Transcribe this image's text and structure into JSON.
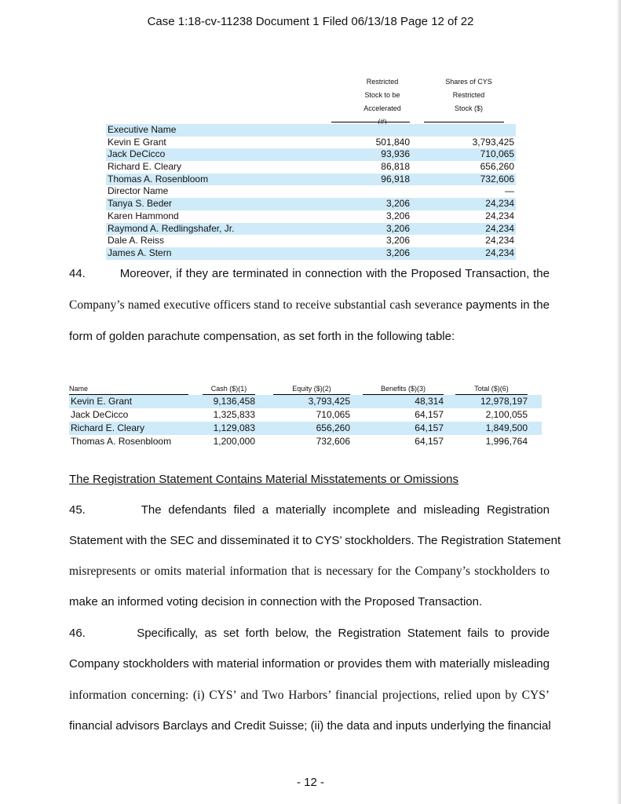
{
  "header": "Case 1:18-cv-11238   Document 1   Filed 06/13/18   Page 12 of 22",
  "table1": {
    "col_headers": [
      [
        "Restricted",
        "Stock to be",
        "Accelerated",
        "(#)"
      ],
      [
        "Shares of CYS",
        "Restricted",
        "Stock ($)"
      ]
    ],
    "rows": [
      {
        "name": "Executive Name",
        "shares": "",
        "value": "",
        "shade": true
      },
      {
        "name": "Kevin E Grant",
        "shares": "501,840",
        "value": "3,793,425",
        "shade": false
      },
      {
        "name": "Jack DeCicco",
        "shares": "93,936",
        "value": "710,065",
        "shade": true
      },
      {
        "name": "Richard E. Cleary",
        "shares": "86,818",
        "value": "656,260",
        "shade": false
      },
      {
        "name": "Thomas A. Rosenbloom",
        "shares": "96,918",
        "value": "732,606",
        "shade": true
      },
      {
        "name": "Director Name",
        "shares": "",
        "value": "—",
        "shade": false
      },
      {
        "name": "Tanya S. Beder",
        "shares": "3,206",
        "value": "24,234",
        "shade": true
      },
      {
        "name": "Karen Hammond",
        "shares": "3,206",
        "value": "24,234",
        "shade": false
      },
      {
        "name": "Raymond A. Redlingshafer, Jr.",
        "shares": "3,206",
        "value": "24,234",
        "shade": true
      },
      {
        "name": "Dale A. Reiss",
        "shares": "3,206",
        "value": "24,234",
        "shade": false
      },
      {
        "name": "James A. Stern",
        "shares": "3,206",
        "value": "24,234",
        "shade": true
      }
    ]
  },
  "para44": [
    [
      "44.         Moreover, if they are terminated in connection with the Proposed Transaction, the"
    ],
    [
      "Company’s named executive officers stand to receive substantial cash severance ",
      "payments in the"
    ],
    [
      "form of golden parachute compensation, as set forth in the following table:"
    ]
  ],
  "table2": {
    "headers": [
      "Name",
      "Cash ($)(1)",
      "Equity ($)(2)",
      "Benefits ($)(3)",
      "Total ($)(6)"
    ],
    "rows": [
      {
        "cells": [
          "Kevin E. Grant",
          "9,136,458",
          "3,793,425",
          "48,314",
          "12,978,197"
        ],
        "shade": true
      },
      {
        "cells": [
          "Jack DeCicco",
          "1,325,833",
          "710,065",
          "64,157",
          "2,100,055"
        ],
        "shade": false
      },
      {
        "cells": [
          "Richard E. Cleary",
          "1,129,083",
          "656,260",
          "64,157",
          "1,849,500"
        ],
        "shade": true
      },
      {
        "cells": [
          "Thomas A. Rosenbloom",
          "1,200,000",
          "732,606",
          "64,157",
          "1,996,764"
        ],
        "shade": false
      }
    ]
  },
  "heading": "The Registration Statement Contains Material Misstatements or Omissions",
  "para45": [
    "45.        The defendants filed a materially incomplete and misleading Registration",
    "Statement with the SEC and disseminated it to CYS’ stockholders.  The Registration Statement",
    "misrepresents or omits material information that is necessary for the Company’s stockholders to",
    "make an informed voting decision in connection with the Proposed Transaction."
  ],
  "para46": [
    "46.        Specifically, as set forth below, the Registration Statement fails to provide",
    "Company stockholders with material information or provides them with materially misleading",
    "information concerning: (i) CYS’ and Two Harbors’ financial projections, relied upon by CYS’",
    "financial advisors Barclays and Credit Suisse; (ii) the data and inputs underlying the financial"
  ],
  "footer": "- 12 -",
  "colors": {
    "row_shade": "#cfeaf8"
  }
}
